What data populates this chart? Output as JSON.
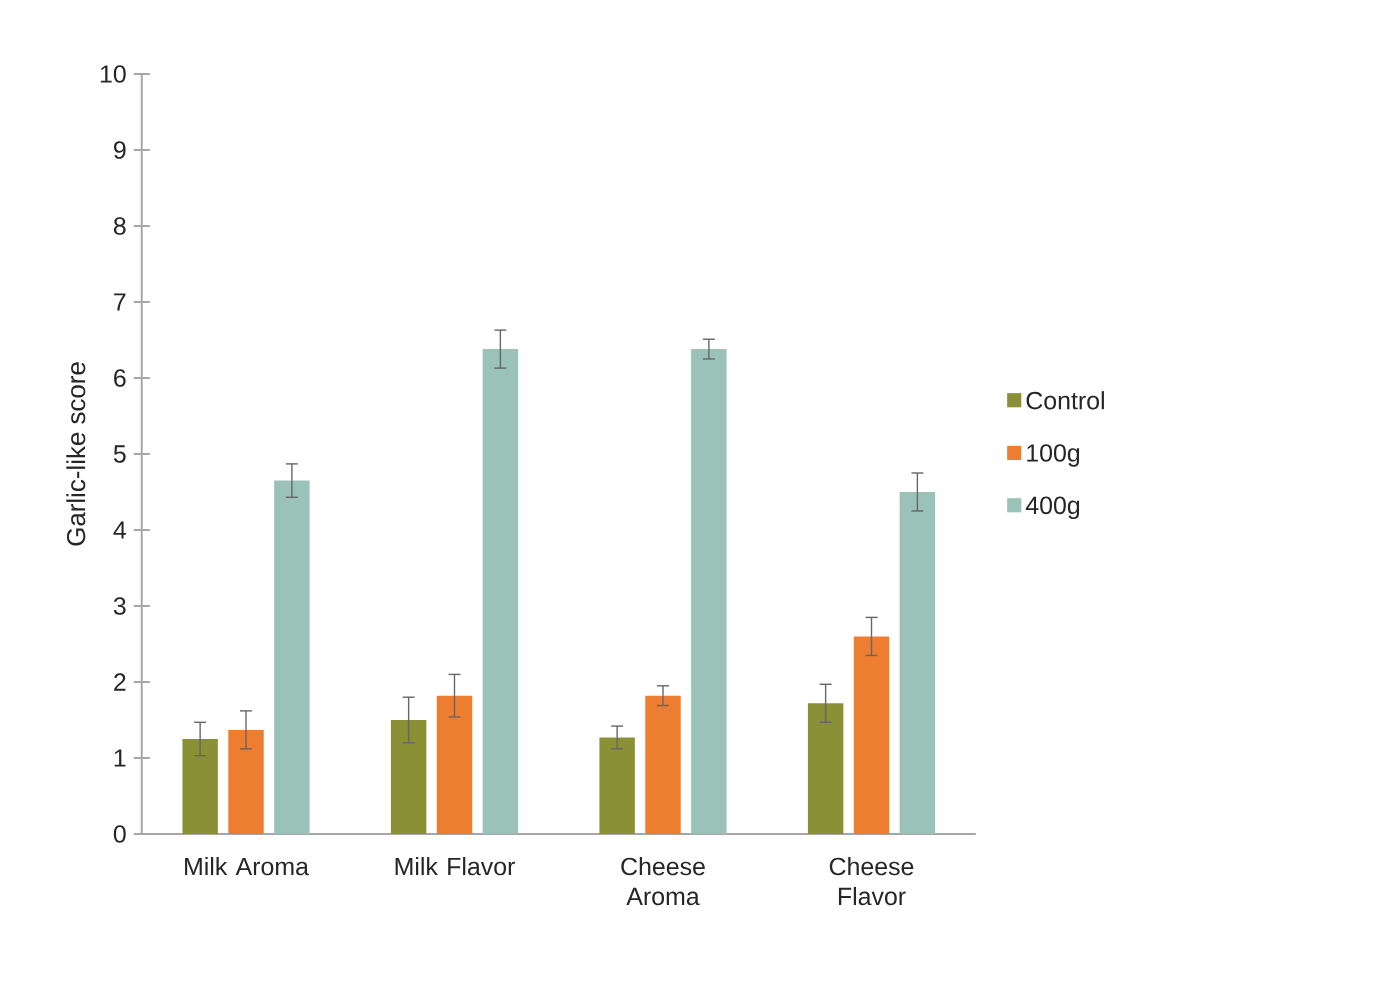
{
  "chart_data": {
    "type": "bar",
    "ylabel": "Garlic-like score",
    "categories": [
      "Milk Aroma",
      "Milk Flavor",
      "Cheese Aroma",
      "Cheese Flavor"
    ],
    "series": [
      {
        "name": "Control",
        "color": "#8a9035",
        "values": [
          1.25,
          1.5,
          1.27,
          1.72
        ],
        "errors": [
          0.22,
          0.3,
          0.15,
          0.25
        ]
      },
      {
        "name": "100g",
        "color": "#ed7d31",
        "values": [
          1.37,
          1.82,
          1.82,
          2.6
        ],
        "errors": [
          0.25,
          0.28,
          0.13,
          0.25
        ]
      },
      {
        "name": "400g",
        "color": "#9bc2b9",
        "values": [
          4.65,
          6.38,
          6.38,
          4.5
        ],
        "errors": [
          0.22,
          0.25,
          0.13,
          0.25
        ]
      }
    ],
    "ylim": [
      0,
      10
    ],
    "yticks": [
      0,
      1,
      2,
      3,
      4,
      5,
      6,
      7,
      8,
      9,
      10
    ],
    "legend": "right"
  }
}
